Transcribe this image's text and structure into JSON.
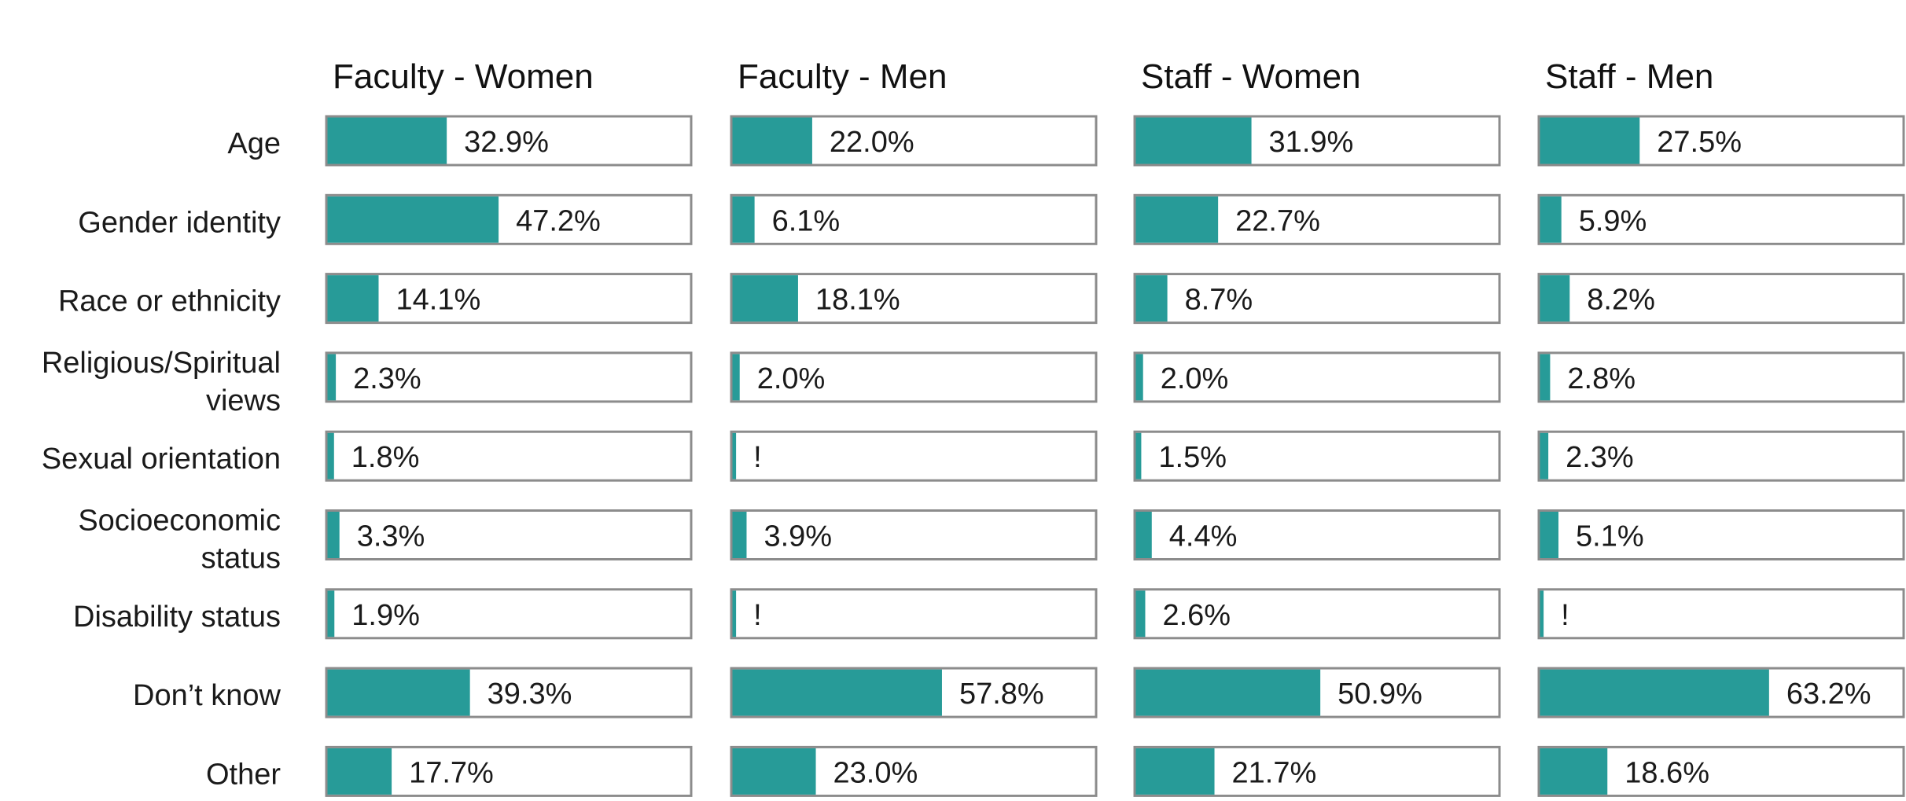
{
  "chart_data": {
    "type": "bar",
    "orientation": "horizontal",
    "layout": "small-multiples",
    "bar_color": "#279B98",
    "frame_color": "#8C8C8C",
    "xlim": [
      0,
      100
    ],
    "categories": [
      [
        "Age"
      ],
      [
        "Gender identity"
      ],
      [
        "Race or ethnicity"
      ],
      [
        "Religious/Spiritual",
        "views"
      ],
      [
        "Sexual orientation"
      ],
      [
        "Socioeconomic",
        "status"
      ],
      [
        "Disability status"
      ],
      [
        "Don’t know"
      ],
      [
        "Other"
      ]
    ],
    "series": [
      {
        "name": "Faculty - Women",
        "values": [
          32.9,
          47.2,
          14.1,
          2.3,
          1.8,
          3.3,
          1.9,
          39.3,
          17.7
        ],
        "labels": [
          "32.9%",
          "47.2%",
          "14.1%",
          "2.3%",
          "1.8%",
          "3.3%",
          "1.9%",
          "39.3%",
          "17.7%"
        ]
      },
      {
        "name": "Faculty - Men",
        "values": [
          22.0,
          6.1,
          18.1,
          2.0,
          1.0,
          3.9,
          1.0,
          57.8,
          23.0
        ],
        "labels": [
          "22.0%",
          "6.1%",
          "18.1%",
          "2.0%",
          "!",
          "3.9%",
          "!",
          "57.8%",
          "23.0%"
        ]
      },
      {
        "name": "Staff - Women",
        "values": [
          31.9,
          22.7,
          8.7,
          2.0,
          1.5,
          4.4,
          2.6,
          50.9,
          21.7
        ],
        "labels": [
          "31.9%",
          "22.7%",
          "8.7%",
          "2.0%",
          "1.5%",
          "4.4%",
          "2.6%",
          "50.9%",
          "21.7%"
        ]
      },
      {
        "name": "Staff - Men",
        "values": [
          27.5,
          5.9,
          8.2,
          2.8,
          2.3,
          5.1,
          1.0,
          63.2,
          18.6
        ],
        "labels": [
          "27.5%",
          "5.9%",
          "8.2%",
          "2.8%",
          "2.3%",
          "5.1%",
          "!",
          "63.2%",
          "18.6%"
        ]
      }
    ]
  }
}
